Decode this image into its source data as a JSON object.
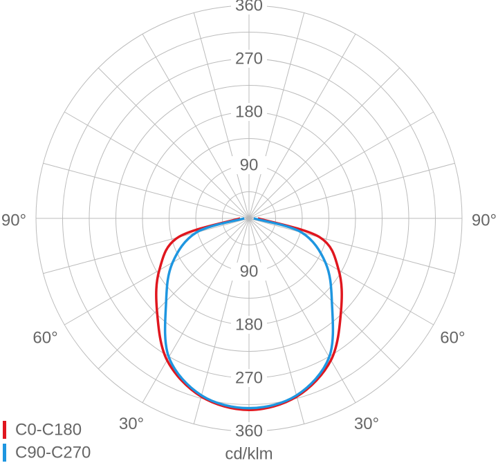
{
  "chart_data": {
    "type": "polar",
    "unit_label": "cd/klm",
    "rlim": [
      0,
      360
    ],
    "rticks": [
      90,
      180,
      270,
      360
    ],
    "rminor": [
      45,
      135,
      225,
      315
    ],
    "angle_grid_step": 15,
    "angle_ticks": [
      {
        "value": -90,
        "label": "90°"
      },
      {
        "value": -60,
        "label": "60°"
      },
      {
        "value": -30,
        "label": "30°"
      },
      {
        "value": 30,
        "label": "30°"
      },
      {
        "value": 60,
        "label": "60°"
      },
      {
        "value": 90,
        "label": "90°"
      }
    ],
    "angles": [
      -90,
      -75,
      -60,
      -45,
      -30,
      -15,
      0,
      15,
      30,
      45,
      60,
      75,
      90
    ],
    "series": [
      {
        "name": "C0-C180",
        "color": "#e0161e",
        "values": [
          15,
          124,
          175,
          220,
          277,
          312,
          324,
          312,
          277,
          220,
          175,
          124,
          15
        ]
      },
      {
        "name": "C90-C270",
        "color": "#1e96e0",
        "values": [
          8,
          92,
          149,
          198,
          271,
          310,
          321,
          310,
          271,
          198,
          149,
          92,
          8
        ]
      }
    ]
  }
}
